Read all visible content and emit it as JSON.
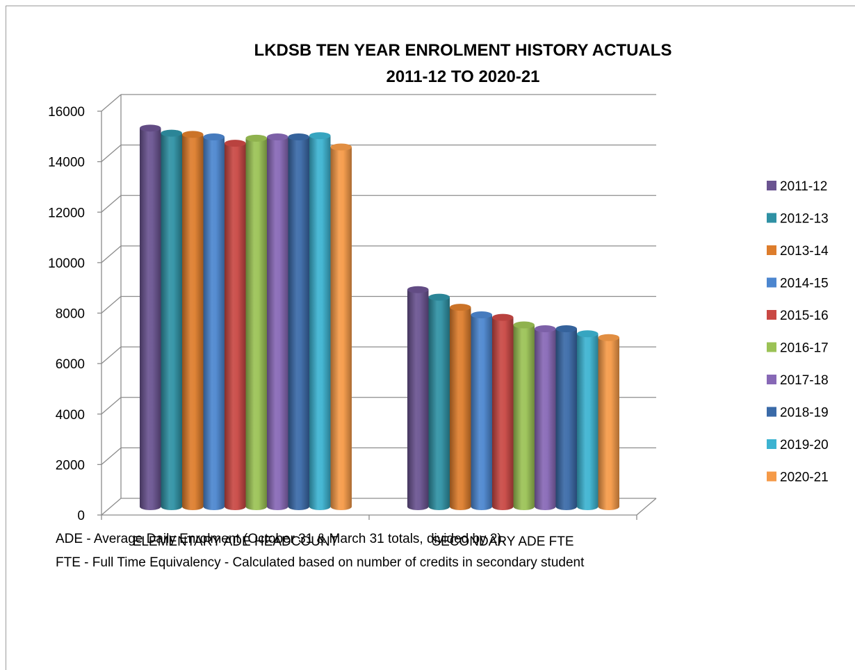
{
  "chart_data": {
    "type": "bar",
    "title": [
      "LKDSB TEN YEAR ENROLMENT HISTORY ACTUALS",
      "2011-12 TO 2020-21"
    ],
    "categories": [
      "ELEMENTARY ADE HEADCOUNT",
      "SECONDARY ADE FTE"
    ],
    "ylim": [
      0,
      16000
    ],
    "yticks": [
      "0",
      "2000",
      "4000",
      "6000",
      "8000",
      "10000",
      "12000",
      "14000",
      "16000"
    ],
    "grid": true,
    "legend_position": "right",
    "series": [
      {
        "name": "2011-12",
        "color": "#6a5390",
        "values": [
          15000,
          8600
        ]
      },
      {
        "name": "2012-13",
        "color": "#2f91a4",
        "values": [
          14800,
          8300
        ]
      },
      {
        "name": "2013-14",
        "color": "#dd7d2c",
        "values": [
          14750,
          7900
        ]
      },
      {
        "name": "2014-15",
        "color": "#4c86cf",
        "values": [
          14650,
          7600
        ]
      },
      {
        "name": "2015-16",
        "color": "#c94844",
        "values": [
          14400,
          7500
        ]
      },
      {
        "name": "2016-17",
        "color": "#9bc255",
        "values": [
          14600,
          7200
        ]
      },
      {
        "name": "2017-18",
        "color": "#8768b6",
        "values": [
          14650,
          7050
        ]
      },
      {
        "name": "2018-19",
        "color": "#3a6aa8",
        "values": [
          14650,
          7050
        ]
      },
      {
        "name": "2019-20",
        "color": "#3cb3d1",
        "values": [
          14700,
          6850
        ]
      },
      {
        "name": "2020-21",
        "color": "#f59a48",
        "values": [
          14250,
          6700
        ]
      }
    ]
  },
  "notes": [
    "ADE - Average Daily Enrolment (October 31 & March 31 totals, divided by 2).",
    "FTE - Full Time Equivalency - Calculated based on number of credits in secondary student"
  ]
}
